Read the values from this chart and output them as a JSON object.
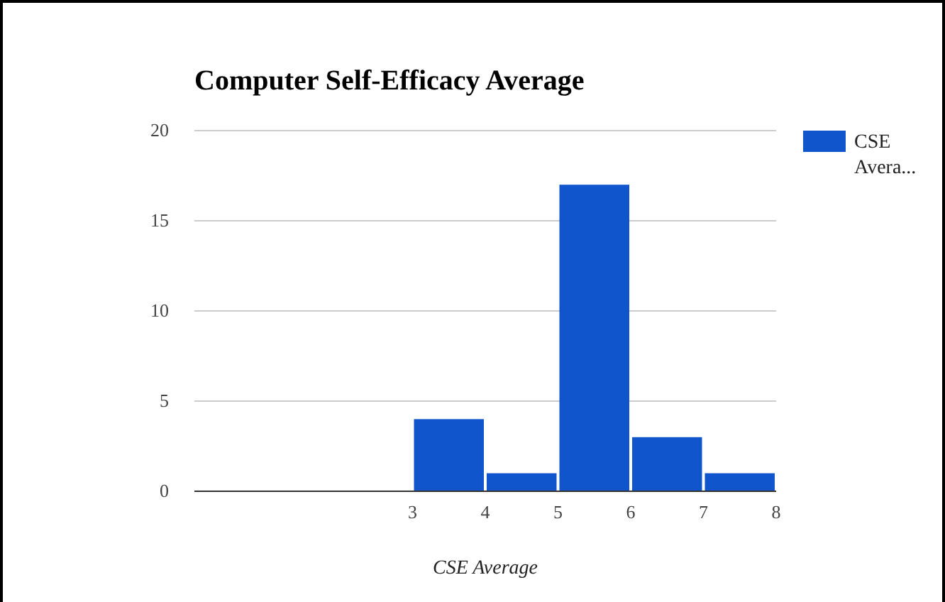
{
  "chart_data": {
    "type": "histogram",
    "title": "Computer Self-Efficacy Average",
    "xlabel": "CSE Average",
    "bins": [
      3,
      4,
      5,
      6,
      7,
      8
    ],
    "series": [
      {
        "name": "CSE Avera...",
        "color": "#1155cc",
        "values": [
          4,
          1,
          17,
          3,
          1
        ]
      }
    ],
    "xlim": [
      0,
      8
    ],
    "xticks": [
      3,
      4,
      5,
      6,
      7,
      8
    ],
    "ylim": [
      0,
      20
    ],
    "yticks": [
      0,
      5,
      10,
      15,
      20
    ],
    "grid": "y",
    "legend": "right"
  }
}
